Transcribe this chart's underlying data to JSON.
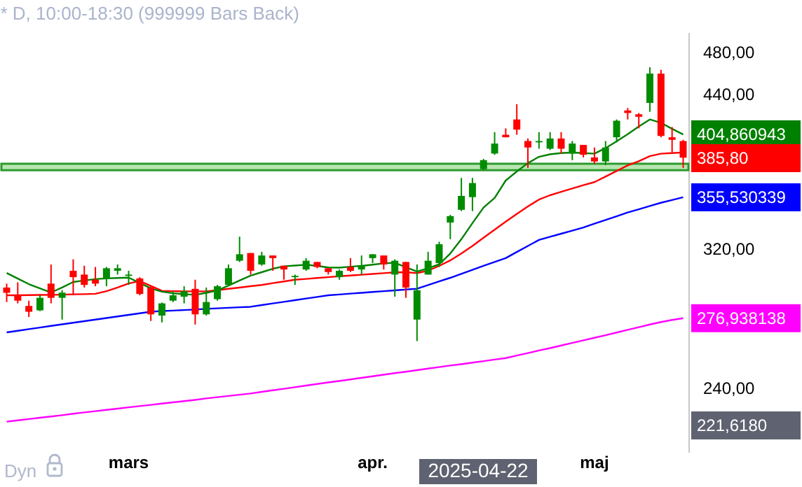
{
  "chart_data": {
    "type": "candlestick",
    "title": "* D, 10:00-18:30 (999999 Bars Back)",
    "categories": [
      null,
      null,
      null,
      null,
      null,
      null,
      null,
      null,
      null,
      null,
      null,
      "mars",
      null,
      null,
      null,
      null,
      null,
      null,
      null,
      null,
      null,
      null,
      null,
      null,
      null,
      null,
      null,
      null,
      null,
      null,
      null,
      null,
      null,
      "apr.",
      null,
      null,
      null,
      null,
      null,
      null,
      null,
      null,
      null,
      null,
      null,
      null,
      null,
      null,
      null,
      null,
      null,
      null,
      null,
      "maj",
      null,
      null,
      null,
      null,
      null,
      null,
      null,
      null
    ],
    "ohlc": [
      [
        295.0,
        297.4,
        286.3,
        291.8
      ],
      [
        290.3,
        298.2,
        285.5,
        287.1
      ],
      [
        284.0,
        287.1,
        277.6,
        280.6
      ],
      [
        281.4,
        290.3,
        281.0,
        288.8
      ],
      [
        297.4,
        309.4,
        285.5,
        288.8
      ],
      [
        288.8,
        293.4,
        276.1,
        291.9
      ],
      [
        305.4,
        312.7,
        290.3,
        301.4
      ],
      [
        303.0,
        308.6,
        295.0,
        296.6
      ],
      [
        299.8,
        307.8,
        295.8,
        297.4
      ],
      [
        300.6,
        307.8,
        295.8,
        307.0
      ],
      [
        305.4,
        309.4,
        303.0,
        307.0
      ],
      [
        302.2,
        305.4,
        296.6,
        303.0
      ],
      [
        300.6,
        301.4,
        290.3,
        291.1
      ],
      [
        295.0,
        295.8,
        275.3,
        279.1
      ],
      [
        278.4,
        286.0,
        274.5,
        285.5
      ],
      [
        287.1,
        292.7,
        286.3,
        290.3
      ],
      [
        289.5,
        295.8,
        285.5,
        292.7
      ],
      [
        294.2,
        299.8,
        273.3,
        279.1
      ],
      [
        279.1,
        295.0,
        278.4,
        286.3
      ],
      [
        288.0,
        296.6,
        287.1,
        295.8
      ],
      [
        296.6,
        309.4,
        295.8,
        307.0
      ],
      [
        311.8,
        327.7,
        311.0,
        316.0
      ],
      [
        316.8,
        316.8,
        303.0,
        305.4
      ],
      [
        309.4,
        317.6,
        308.6,
        315.2
      ],
      [
        315.2,
        315.2,
        305.4,
        313.5
      ],
      [
        308.6,
        308.6,
        299.8,
        306.2
      ],
      [
        301.4,
        303.0,
        296.6,
        302.2
      ],
      [
        306.2,
        313.5,
        305.4,
        311.8
      ],
      [
        311.0,
        311.0,
        307.0,
        307.8
      ],
      [
        307.0,
        307.0,
        303.0,
        304.6
      ],
      [
        301.4,
        306.2,
        299.8,
        305.4
      ],
      [
        307.8,
        313.5,
        304.6,
        305.4
      ],
      [
        306.2,
        315.2,
        303.0,
        308.6
      ],
      [
        313.5,
        316.0,
        310.3,
        316.0
      ],
      [
        315.2,
        315.2,
        306.2,
        309.4
      ],
      [
        303.0,
        312.7,
        289.5,
        311.8
      ],
      [
        311.0,
        311.0,
        288.8,
        295.0
      ],
      [
        276.1,
        309.4,
        264.1,
        293.4
      ],
      [
        303.0,
        317.6,
        303.0,
        311.8
      ],
      [
        310.3,
        324.3,
        307.8,
        322.6
      ],
      [
        337.4,
        342.8,
        326.0,
        341.9
      ],
      [
        346.4,
        370.0,
        345.5,
        356.5
      ],
      [
        355.6,
        370.0,
        345.5,
        366.1
      ],
      [
        376.8,
        384.8,
        375.8,
        383.8
      ],
      [
        389.1,
        406.7,
        388.1,
        397.2
      ],
      [
        404.5,
        409.9,
        402.4,
        402.4
      ],
      [
        417.5,
        430.9,
        404.5,
        408.8
      ],
      [
        399.3,
        401.4,
        377.7,
        394.0
      ],
      [
        398.2,
        406.7,
        393.0,
        399.3
      ],
      [
        393.0,
        406.7,
        392.0,
        401.4
      ],
      [
        401.4,
        406.7,
        389.1,
        393.0
      ],
      [
        389.1,
        399.3,
        383.8,
        397.2
      ],
      [
        396.1,
        396.1,
        386.0,
        388.1
      ],
      [
        386.0,
        394.0,
        380.8,
        382.8
      ],
      [
        382.8,
        399.3,
        379.9,
        394.0
      ],
      [
        402.4,
        417.5,
        398.2,
        416.4
      ],
      [
        425.3,
        427.5,
        417.5,
        423.1
      ],
      [
        422.0,
        423.1,
        409.9,
        419.8
      ],
      [
        432.0,
        465.0,
        424.2,
        459.0
      ],
      [
        459.0,
        462.6,
        402.4,
        403.5
      ],
      [
        402.4,
        411.0,
        390.1,
        400.3
      ],
      [
        399.3,
        400.3,
        377.7,
        385.8
      ]
    ],
    "colors": [
      "#ff0000",
      "#ff0000",
      "#ff0000",
      "#008c00",
      "#ff0000",
      "#008c00",
      "#ff0000",
      "#ff0000",
      "#ff0000",
      "#008c00",
      "#008c00",
      "#008c00",
      "#ff0000",
      "#ff0000",
      "#008c00",
      "#008c00",
      "#008c00",
      "#ff0000",
      "#008c00",
      "#008c00",
      "#008c00",
      "#008c00",
      "#ff0000",
      "#008c00",
      "#ff0000",
      "#ff0000",
      "#008c00",
      "#008c00",
      "#ff0000",
      "#ff0000",
      "#008c00",
      "#ff0000",
      "#008c00",
      "#008c00",
      "#ff0000",
      "#008c00",
      "#ff0000",
      "#008c00",
      "#008c00",
      "#008c00",
      "#008c00",
      "#008c00",
      "#008c00",
      "#008c00",
      "#008c00",
      "#ff0000",
      "#ff0000",
      "#ff0000",
      "#008c00",
      "#008c00",
      "#ff0000",
      "#008c00",
      "#ff0000",
      "#ff0000",
      "#008c00",
      "#008c00",
      "#ff0000",
      "#ff0000",
      "#008c00",
      "#ff0000",
      "#ff0000",
      "#ff0000"
    ],
    "series": [
      {
        "type": "line",
        "color": "#ff00ff",
        "values": [
          223.6,
          224.2,
          224.8,
          225.4,
          226.0,
          226.6,
          227.3,
          227.9,
          228.5,
          229.1,
          229.7,
          230.3,
          230.9,
          231.5,
          232.1,
          232.7,
          233.3,
          233.9,
          234.6,
          235.2,
          235.8,
          236.4,
          237.0,
          237.8,
          238.6,
          239.3,
          240.1,
          240.9,
          241.7,
          242.5,
          243.2,
          244.0,
          244.8,
          245.6,
          246.4,
          247.2,
          247.9,
          248.7,
          249.5,
          250.3,
          251.1,
          251.8,
          252.6,
          253.4,
          254.2,
          255.0,
          256.3,
          257.6,
          259.0,
          260.3,
          261.7,
          263.1,
          264.5,
          265.9,
          267.3,
          268.8,
          270.3,
          271.8,
          273.3,
          274.7,
          275.9,
          276.9
        ],
        "value_labels": [
          null,
          null,
          null,
          null,
          null,
          null,
          null,
          null,
          null,
          null,
          null,
          null,
          null,
          null,
          null,
          null,
          null,
          null,
          null,
          null,
          null,
          null,
          null,
          null,
          null,
          null,
          null,
          null,
          null,
          null,
          null,
          null,
          null,
          null,
          null,
          null,
          null,
          null,
          null,
          null,
          null,
          null,
          null,
          null,
          null,
          null,
          null,
          null,
          null,
          null,
          null,
          null,
          null,
          null,
          null,
          null,
          null,
          null,
          null,
          null,
          null,
          "276,938138"
        ]
      },
      {
        "type": "line",
        "color": "#0000ff",
        "values": [
          268.9,
          269.8,
          270.7,
          271.6,
          272.5,
          273.4,
          274.3,
          275.2,
          276.1,
          277.0,
          277.9,
          278.8,
          279.7,
          280.6,
          281.0,
          281.3,
          281.6,
          281.9,
          282.3,
          282.6,
          282.9,
          283.2,
          283.5,
          284.5,
          285.5,
          286.4,
          287.4,
          288.4,
          289.3,
          290.3,
          290.8,
          291.3,
          291.8,
          292.3,
          292.8,
          293.3,
          293.8,
          294.3,
          296.5,
          298.8,
          301.0,
          303.5,
          306.0,
          308.5,
          311.0,
          313.5,
          317.5,
          321.5,
          325.5,
          327.6,
          329.7,
          331.8,
          334.0,
          336.6,
          339.2,
          341.8,
          344.5,
          346.8,
          349.2,
          351.5,
          353.5,
          355.5
        ],
        "value_labels": [
          null,
          null,
          null,
          null,
          null,
          null,
          null,
          null,
          null,
          null,
          null,
          null,
          null,
          null,
          null,
          null,
          null,
          null,
          null,
          null,
          null,
          null,
          null,
          null,
          null,
          null,
          null,
          null,
          null,
          null,
          null,
          null,
          null,
          null,
          null,
          null,
          null,
          null,
          null,
          null,
          null,
          null,
          null,
          null,
          null,
          null,
          null,
          null,
          null,
          null,
          null,
          null,
          null,
          null,
          null,
          null,
          null,
          null,
          null,
          null,
          null,
          "355,530339"
        ]
      },
      {
        "type": "line",
        "color": "#ff0000",
        "values": [
          290.3,
          290.3,
          290.4,
          290.5,
          290.6,
          290.7,
          290.9,
          291.0,
          291.2,
          292.8,
          295.0,
          297.5,
          299.0,
          296.0,
          293.0,
          292.8,
          292.7,
          292.7,
          292.7,
          293.4,
          294.2,
          295.0,
          295.8,
          296.6,
          297.7,
          298.7,
          299.8,
          300.3,
          300.9,
          301.4,
          302.0,
          302.4,
          302.9,
          303.4,
          303.9,
          304.4,
          304.5,
          303.9,
          305.5,
          308.5,
          312.0,
          316.5,
          321.5,
          327.0,
          332.5,
          338.0,
          343.5,
          348.8,
          353.8,
          357.0,
          359.5,
          362.0,
          364.5,
          366.8,
          371.0,
          375.3,
          379.7,
          383.0,
          387.0,
          389.0,
          389.5,
          390.0
        ]
      },
      {
        "type": "line",
        "color": "#008000",
        "values": [
          304.0,
          300.5,
          297.1,
          294.5,
          292.0,
          295.0,
          298.4,
          299.3,
          300.2,
          300.6,
          300.9,
          301.1,
          297.8,
          294.5,
          292.5,
          291.5,
          291.0,
          290.6,
          291.8,
          293.2,
          296.2,
          299.3,
          302.4,
          304.5,
          306.7,
          308.2,
          308.7,
          309.2,
          308.5,
          307.5,
          307.4,
          308.0,
          308.5,
          309.3,
          310.1,
          310.5,
          307.7,
          304.9,
          307.0,
          309.5,
          316.5,
          326.0,
          337.0,
          348.0,
          355.0,
          368.0,
          375.0,
          381.5,
          386.5,
          388.5,
          389.5,
          389.9,
          389.5,
          389.0,
          393.5,
          399.0,
          405.0,
          411.5,
          417.5,
          414.6,
          409.5,
          404.8
        ],
        "value_labels": [
          null,
          null,
          null,
          null,
          null,
          null,
          null,
          null,
          null,
          null,
          null,
          null,
          null,
          null,
          null,
          null,
          null,
          null,
          null,
          null,
          null,
          null,
          null,
          null,
          null,
          null,
          null,
          null,
          null,
          null,
          null,
          null,
          null,
          null,
          null,
          null,
          null,
          null,
          null,
          null,
          null,
          null,
          null,
          null,
          null,
          null,
          null,
          null,
          null,
          null,
          null,
          null,
          null,
          null,
          null,
          null,
          null,
          null,
          null,
          null,
          null,
          "404,860943"
        ]
      }
    ],
    "ylim": [
      210,
      500
    ],
    "log": true,
    "yticks": [
      {
        "value": 240,
        "label": "240,00"
      },
      {
        "value": 320,
        "label": "320,00"
      },
      {
        "value": 440,
        "label": "440,00"
      },
      {
        "value": 480,
        "label": "480,00"
      }
    ],
    "bands": [
      {
        "axis": "y",
        "from": 376,
        "to": 381,
        "color": "#b8e6b0"
      }
    ],
    "annotations": [
      "385,80",
      "221,6180",
      "2025-04-22",
      "Dyn"
    ]
  }
}
